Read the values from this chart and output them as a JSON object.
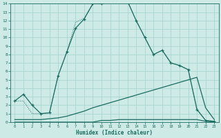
{
  "xlabel": "Humidex (Indice chaleur)",
  "bg_color": "#ceeae7",
  "grid_color": "#a8d5d1",
  "line_color": "#1a6b60",
  "xlim": [
    -0.5,
    23.5
  ],
  "ylim": [
    0,
    14
  ],
  "xticks": [
    0,
    1,
    2,
    3,
    4,
    5,
    6,
    7,
    8,
    9,
    10,
    11,
    12,
    13,
    14,
    15,
    16,
    17,
    18,
    19,
    20,
    21,
    22,
    23
  ],
  "yticks": [
    0,
    1,
    2,
    3,
    4,
    5,
    6,
    7,
    8,
    9,
    10,
    11,
    12,
    13,
    14
  ],
  "curve1_x": [
    0,
    1,
    2,
    3,
    4,
    5,
    6,
    7,
    8,
    9,
    10,
    11,
    12,
    13,
    14,
    15,
    16,
    17,
    18,
    19,
    20,
    21,
    22,
    23
  ],
  "curve1_y": [
    2.5,
    3.3,
    2.0,
    1.0,
    1.1,
    5.5,
    8.3,
    11.1,
    12.2,
    14.0,
    14.0,
    14.3,
    14.3,
    14.3,
    12.0,
    10.0,
    8.0,
    8.5,
    7.0,
    6.7,
    6.2,
    1.5,
    0.2,
    0.1
  ],
  "curve2_x": [
    0,
    1,
    2,
    3,
    4,
    5,
    6,
    7,
    8,
    9,
    10,
    11,
    12,
    13,
    14,
    15,
    16,
    17,
    18,
    19,
    20,
    21,
    22,
    23
  ],
  "curve2_y": [
    2.5,
    2.5,
    1.0,
    1.0,
    1.1,
    5.5,
    8.3,
    11.8,
    12.3,
    14.0,
    14.0,
    14.3,
    14.3,
    14.3,
    12.0,
    10.0,
    8.0,
    8.5,
    7.0,
    6.7,
    6.2,
    1.5,
    0.2,
    0.1
  ],
  "curve3_x": [
    0,
    1,
    2,
    3,
    4,
    5,
    6,
    7,
    8,
    9,
    10,
    11,
    12,
    13,
    14,
    15,
    16,
    17,
    18,
    19,
    20,
    21,
    22,
    23
  ],
  "curve3_y": [
    0.3,
    0.3,
    0.3,
    0.3,
    0.4,
    0.5,
    0.7,
    1.0,
    1.3,
    1.7,
    2.0,
    2.3,
    2.6,
    2.9,
    3.2,
    3.5,
    3.8,
    4.1,
    4.4,
    4.7,
    5.0,
    5.3,
    1.7,
    0.3
  ],
  "curve4_x": [
    0,
    1,
    2,
    3,
    4,
    5,
    6,
    7,
    8,
    9,
    10,
    11,
    12,
    13,
    14,
    15,
    16,
    17,
    18,
    19,
    20,
    21,
    22,
    23
  ],
  "curve4_y": [
    0.0,
    0.0,
    0.0,
    0.0,
    0.0,
    0.0,
    0.0,
    0.0,
    0.0,
    0.0,
    0.2,
    0.2,
    0.3,
    0.3,
    0.3,
    0.3,
    0.3,
    0.3,
    0.3,
    0.3,
    0.3,
    0.3,
    0.1,
    0.0
  ]
}
